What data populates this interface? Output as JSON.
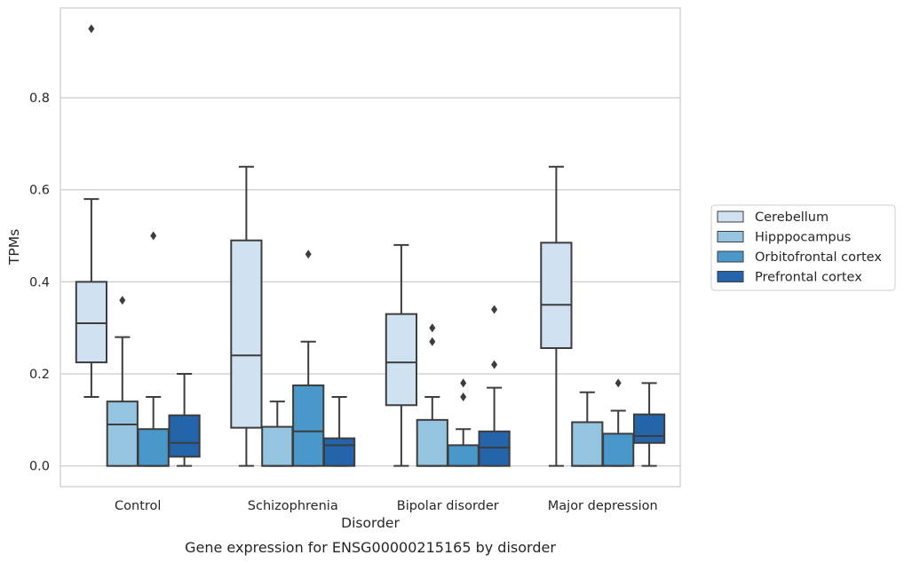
{
  "chart_data": {
    "type": "boxplot",
    "title": "",
    "caption": "Gene expression for ENSG00000215165 by disorder",
    "xlabel": "Disorder",
    "ylabel": "TPMs",
    "ylim": [
      -0.045,
      0.995
    ],
    "yticks": [
      0.0,
      0.2,
      0.4,
      0.6,
      0.8
    ],
    "ytick_labels": [
      "0.0",
      "0.2",
      "0.4",
      "0.6",
      "0.8"
    ],
    "grid": "horizontal",
    "legend_position": "right",
    "categories": [
      "Control",
      "Schizophrenia",
      "Bipolar disorder",
      "Major depression"
    ],
    "series": [
      {
        "name": "Cerebellum",
        "color": "#d0e1f2",
        "boxes": [
          {
            "whislo": 0.15,
            "q1": 0.225,
            "med": 0.31,
            "q3": 0.4,
            "whishi": 0.58,
            "fliers": [
              0.95
            ]
          },
          {
            "whislo": 0.0,
            "q1": 0.083,
            "med": 0.24,
            "q3": 0.49,
            "whishi": 0.65,
            "fliers": []
          },
          {
            "whislo": 0.0,
            "q1": 0.132,
            "med": 0.225,
            "q3": 0.33,
            "whishi": 0.48,
            "fliers": []
          },
          {
            "whislo": 0.0,
            "q1": 0.256,
            "med": 0.35,
            "q3": 0.485,
            "whishi": 0.65,
            "fliers": []
          }
        ]
      },
      {
        "name": "Hipppocampus",
        "color": "#94c4df",
        "boxes": [
          {
            "whislo": 0.0,
            "q1": 0.0,
            "med": 0.09,
            "q3": 0.14,
            "whishi": 0.28,
            "fliers": [
              0.36
            ]
          },
          {
            "whislo": 0.0,
            "q1": 0.0,
            "med": 0.0,
            "q3": 0.085,
            "whishi": 0.14,
            "fliers": []
          },
          {
            "whislo": 0.0,
            "q1": 0.0,
            "med": 0.0,
            "q3": 0.1,
            "whishi": 0.15,
            "fliers": [
              0.27,
              0.3
            ]
          },
          {
            "whislo": 0.0,
            "q1": 0.0,
            "med": 0.0,
            "q3": 0.095,
            "whishi": 0.16,
            "fliers": []
          }
        ]
      },
      {
        "name": "Orbitofrontal cortex",
        "color": "#4a98c9",
        "boxes": [
          {
            "whislo": 0.0,
            "q1": 0.0,
            "med": 0.0,
            "q3": 0.08,
            "whishi": 0.15,
            "fliers": [
              0.5
            ]
          },
          {
            "whislo": 0.0,
            "q1": 0.0,
            "med": 0.075,
            "q3": 0.175,
            "whishi": 0.27,
            "fliers": [
              0.46
            ]
          },
          {
            "whislo": 0.0,
            "q1": 0.0,
            "med": 0.0,
            "q3": 0.045,
            "whishi": 0.08,
            "fliers": [
              0.15,
              0.18
            ]
          },
          {
            "whislo": 0.0,
            "q1": 0.0,
            "med": 0.0,
            "q3": 0.07,
            "whishi": 0.12,
            "fliers": [
              0.18
            ]
          }
        ]
      },
      {
        "name": "Prefrontal cortex",
        "color": "#2464ab",
        "boxes": [
          {
            "whislo": 0.0,
            "q1": 0.02,
            "med": 0.05,
            "q3": 0.11,
            "whishi": 0.2,
            "fliers": []
          },
          {
            "whislo": 0.0,
            "q1": 0.0,
            "med": 0.045,
            "q3": 0.06,
            "whishi": 0.15,
            "fliers": []
          },
          {
            "whislo": 0.0,
            "q1": 0.0,
            "med": 0.04,
            "q3": 0.075,
            "whishi": 0.17,
            "fliers": [
              0.22,
              0.34
            ]
          },
          {
            "whislo": 0.0,
            "q1": 0.05,
            "med": 0.065,
            "q3": 0.112,
            "whishi": 0.18,
            "fliers": []
          }
        ]
      }
    ]
  }
}
